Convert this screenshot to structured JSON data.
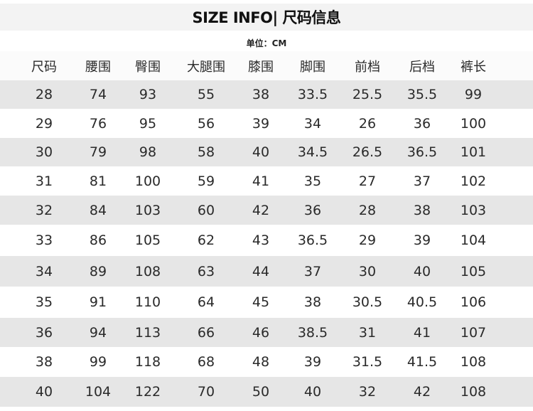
{
  "title": "SIZE INFO| 尺码信息",
  "unit": "单位：CM",
  "table": {
    "headers": [
      "尺码",
      "腰围",
      "臀围",
      "大腿围",
      "膝围",
      "脚围",
      "前档",
      "后档",
      "裤长"
    ],
    "rows": [
      [
        "28",
        "74",
        "93",
        "55",
        "38",
        "33.5",
        "25.5",
        "35.5",
        "99"
      ],
      [
        "29",
        "76",
        "95",
        "56",
        "39",
        "34",
        "26",
        "36",
        "100"
      ],
      [
        "30",
        "79",
        "98",
        "58",
        "40",
        "34.5",
        "26.5",
        "36.5",
        "101"
      ],
      [
        "31",
        "81",
        "100",
        "59",
        "41",
        "35",
        "27",
        "37",
        "102"
      ],
      [
        "32",
        "84",
        "103",
        "60",
        "42",
        "36",
        "28",
        "38",
        "103"
      ],
      [
        "33",
        "86",
        "105",
        "62",
        "43",
        "36.5",
        "29",
        "39",
        "104"
      ],
      [
        "34",
        "89",
        "108",
        "63",
        "44",
        "37",
        "30",
        "40",
        "105"
      ],
      [
        "35",
        "91",
        "110",
        "64",
        "45",
        "38",
        "30.5",
        "40.5",
        "106"
      ],
      [
        "36",
        "94",
        "113",
        "66",
        "46",
        "38.5",
        "31",
        "41",
        "107"
      ],
      [
        "38",
        "99",
        "118",
        "68",
        "48",
        "39",
        "31.5",
        "41.5",
        "108"
      ],
      [
        "40",
        "104",
        "122",
        "70",
        "50",
        "40",
        "32",
        "42",
        "108"
      ]
    ]
  },
  "colors": {
    "title_band": "#f3f3f3",
    "alt_row": "#e6e6e6",
    "text": "#2a2a2a"
  }
}
